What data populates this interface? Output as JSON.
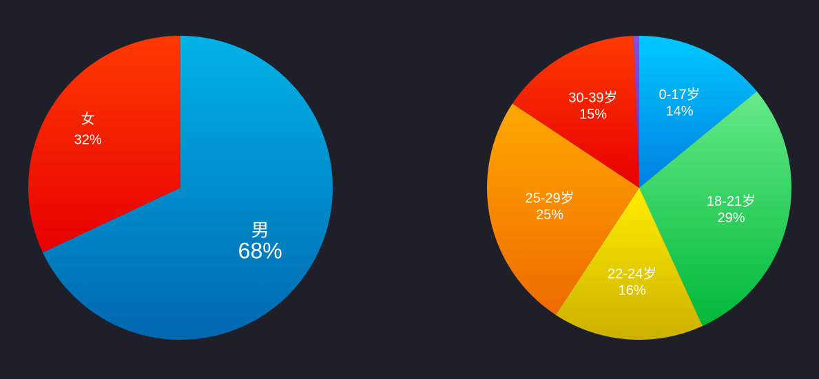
{
  "chart_data": [
    {
      "type": "pie",
      "title": "",
      "slices": [
        {
          "label": "男",
          "value": 68,
          "display": "68%",
          "color_top": "#00b3e6",
          "color_bottom": "#0067b0"
        },
        {
          "label": "女",
          "value": 32,
          "display": "32%",
          "color_top": "#ff3a00",
          "color_bottom": "#e60000"
        }
      ]
    },
    {
      "type": "pie",
      "title": "",
      "slices": [
        {
          "label": "0-17岁",
          "value": 14,
          "display": "14%",
          "color_top": "#00c8ff",
          "color_bottom": "#0080e0"
        },
        {
          "label": "18-21岁",
          "value": 29,
          "display": "29%",
          "color_top": "#66ea88",
          "color_bottom": "#00b83a"
        },
        {
          "label": "22-24岁",
          "value": 16,
          "display": "16%",
          "color_top": "#ffee00",
          "color_bottom": "#ccb000"
        },
        {
          "label": "25-29岁",
          "value": 25,
          "display": "25%",
          "color_top": "#ffa800",
          "color_bottom": "#ee6a00"
        },
        {
          "label": "30-39岁",
          "value": 15,
          "display": "15%",
          "color_top": "#ff3a00",
          "color_bottom": "#e60000"
        },
        {
          "label": "",
          "value": 0.6,
          "display": "",
          "color_top": "#8a4fd8",
          "color_bottom": "#6a30c0"
        }
      ]
    }
  ]
}
